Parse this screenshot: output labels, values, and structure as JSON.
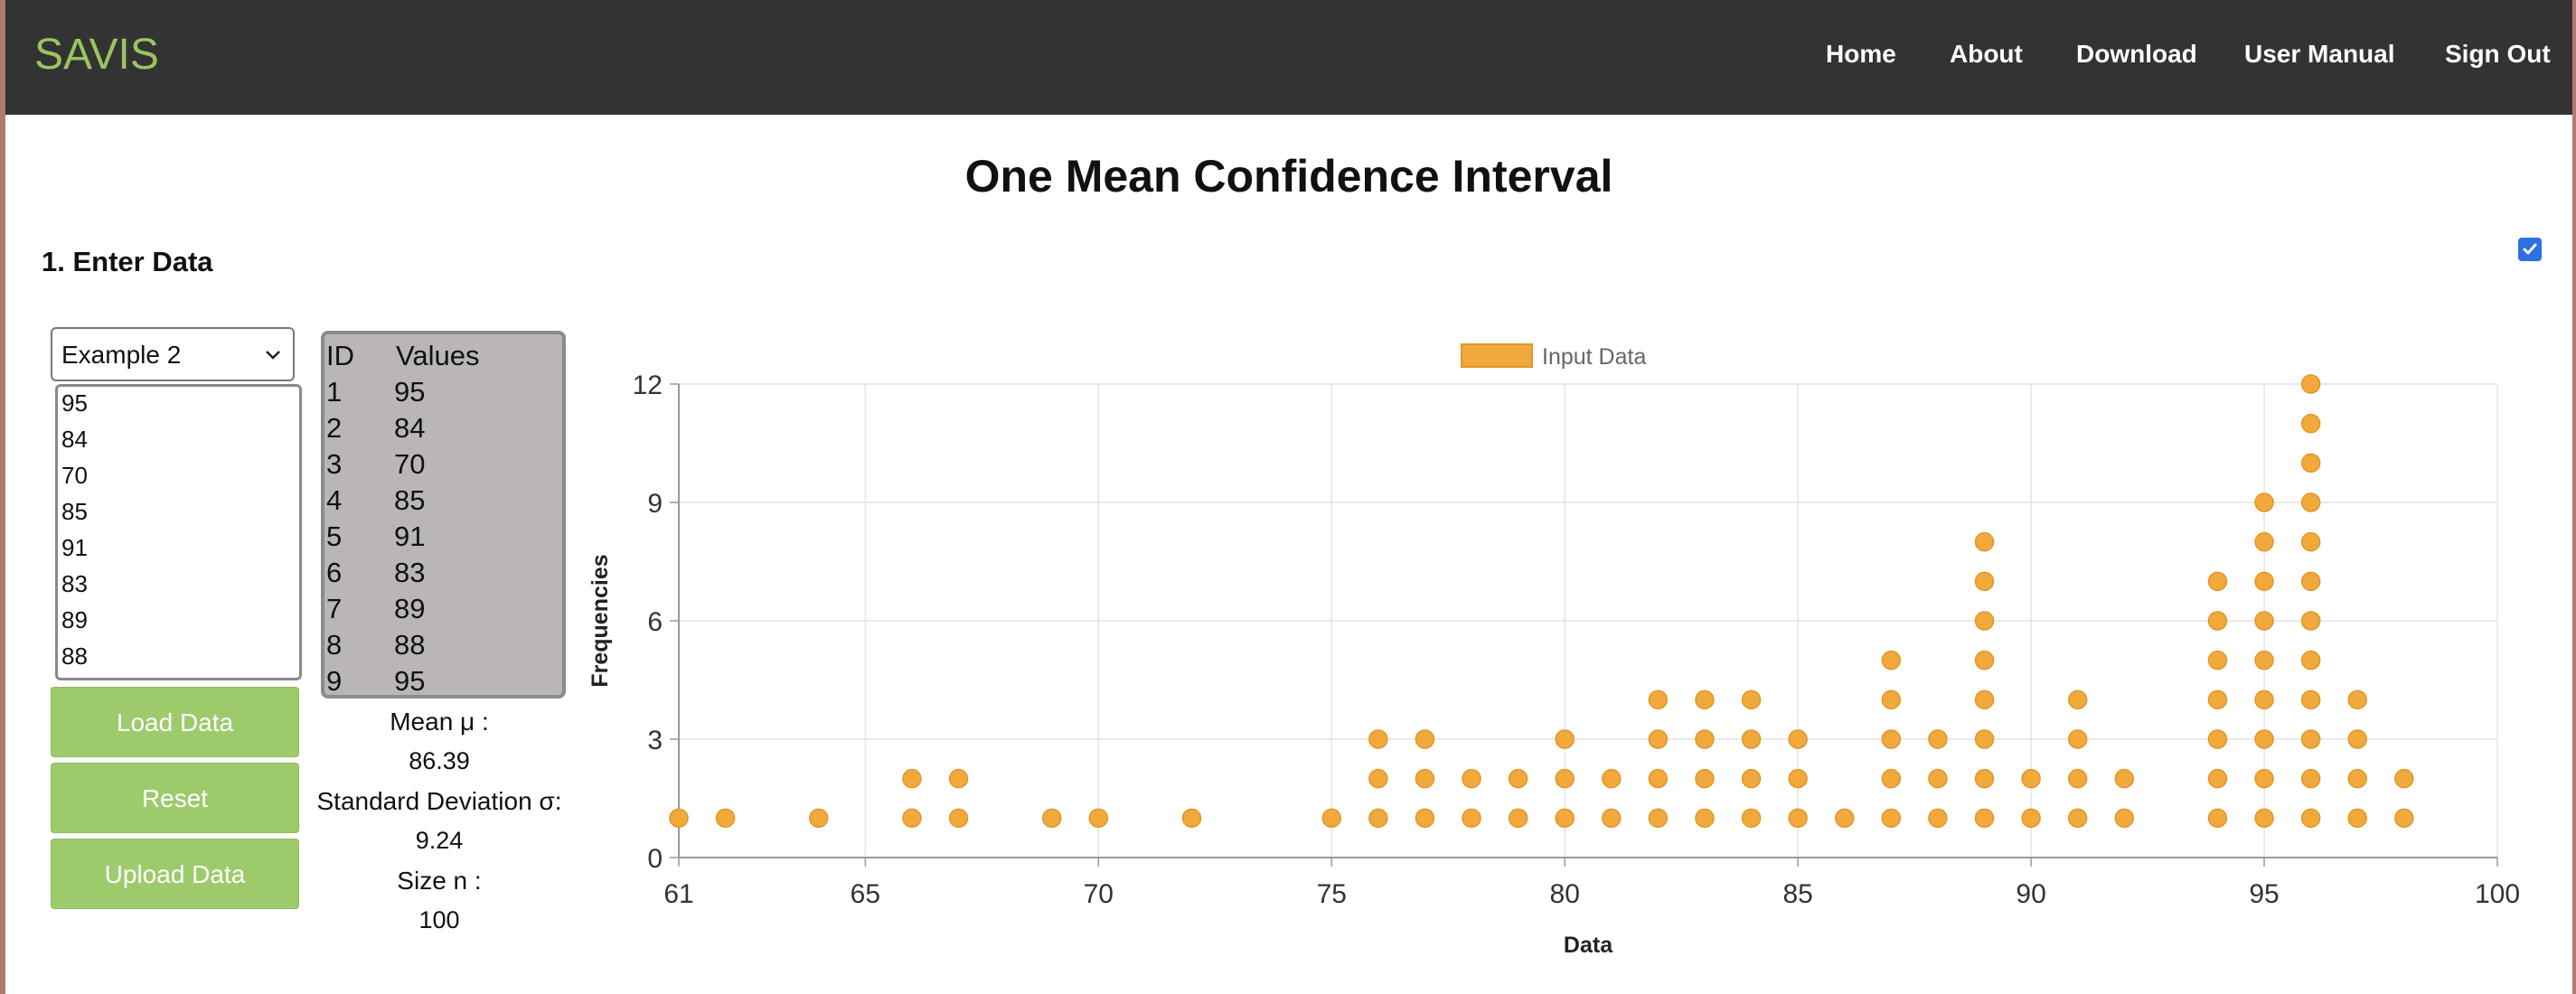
{
  "app": {
    "brand": "SAVIS"
  },
  "nav": {
    "items": [
      "Home",
      "About",
      "Download",
      "User Manual",
      "Sign Out"
    ]
  },
  "page": {
    "title": "One Mean Confidence Interval",
    "section": "1. Enter Data",
    "toggle_checked": true
  },
  "input": {
    "dataset_selected": "Example 2",
    "textarea_lines": [
      "95",
      "84",
      "70",
      "85",
      "91",
      "83",
      "89",
      "88"
    ]
  },
  "buttons": {
    "load": "Load Data",
    "reset": "Reset",
    "upload": "Upload Data"
  },
  "table": {
    "headers": [
      "ID",
      "Values"
    ],
    "rows": [
      [
        "1",
        "95"
      ],
      [
        "2",
        "84"
      ],
      [
        "3",
        "70"
      ],
      [
        "4",
        "85"
      ],
      [
        "5",
        "91"
      ],
      [
        "6",
        "83"
      ],
      [
        "7",
        "89"
      ],
      [
        "8",
        "88"
      ],
      [
        "9",
        "95"
      ]
    ]
  },
  "stats": {
    "mean_label": "Mean μ :",
    "mean_value": "86.39",
    "sd_label": "Standard Deviation σ:",
    "sd_value": "9.24",
    "size_label": "Size n :",
    "size_value": "100"
  },
  "chart_data": {
    "type": "scatter",
    "legend": [
      "Input Data"
    ],
    "legend_position": "top-center",
    "xlabel": "Data",
    "ylabel": "Frequencies",
    "xlim": [
      61,
      100
    ],
    "ylim": [
      0,
      12
    ],
    "x_ticks": [
      61,
      65,
      70,
      75,
      80,
      85,
      90,
      95,
      100
    ],
    "y_ticks": [
      0,
      3,
      6,
      9,
      12
    ],
    "grid": true,
    "color": "#f2a93b",
    "counts": [
      [
        61,
        1
      ],
      [
        62,
        1
      ],
      [
        64,
        1
      ],
      [
        66,
        2
      ],
      [
        67,
        2
      ],
      [
        69,
        1
      ],
      [
        70,
        1
      ],
      [
        72,
        1
      ],
      [
        75,
        1
      ],
      [
        76,
        3
      ],
      [
        77,
        3
      ],
      [
        78,
        2
      ],
      [
        79,
        2
      ],
      [
        80,
        3
      ],
      [
        81,
        2
      ],
      [
        82,
        4
      ],
      [
        83,
        4
      ],
      [
        84,
        4
      ],
      [
        85,
        3
      ],
      [
        86,
        1
      ],
      [
        87,
        5
      ],
      [
        88,
        3
      ],
      [
        89,
        8
      ],
      [
        90,
        2
      ],
      [
        91,
        4
      ],
      [
        92,
        2
      ],
      [
        94,
        7
      ],
      [
        95,
        9
      ],
      [
        96,
        12
      ],
      [
        97,
        4
      ],
      [
        98,
        2
      ]
    ]
  }
}
